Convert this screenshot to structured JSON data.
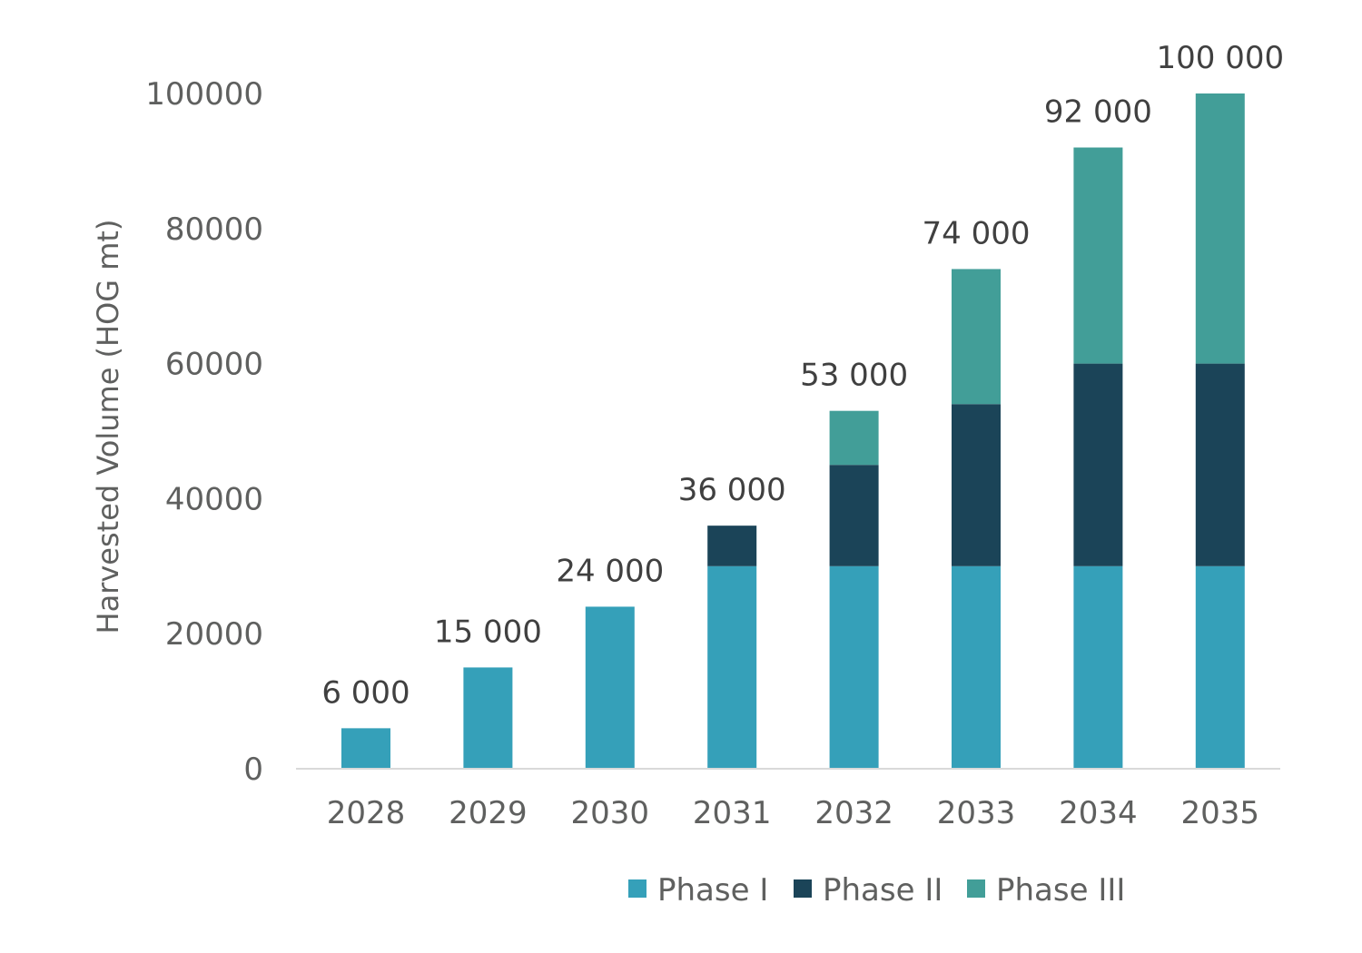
{
  "chart_data": {
    "type": "bar",
    "stacked": true,
    "categories": [
      "2028",
      "2029",
      "2030",
      "2031",
      "2032",
      "2033",
      "2034",
      "2035"
    ],
    "series": [
      {
        "name": "Phase I",
        "color": "#35a0b9",
        "values": [
          6000,
          15000,
          24000,
          30000,
          30000,
          30000,
          30000,
          30000
        ]
      },
      {
        "name": "Phase II",
        "color": "#1b4458",
        "values": [
          0,
          0,
          0,
          6000,
          15000,
          24000,
          30000,
          30000
        ]
      },
      {
        "name": "Phase III",
        "color": "#429e98",
        "values": [
          0,
          0,
          0,
          0,
          8000,
          20000,
          32000,
          40000
        ]
      }
    ],
    "totals": [
      "6 000",
      "15 000",
      "24 000",
      "36 000",
      "53 000",
      "74 000",
      "92 000",
      "100 000"
    ],
    "title": "",
    "xlabel": "",
    "ylabel": "Harvested Volume (HOG mt)",
    "ylim": [
      0,
      100000
    ],
    "yticks": [
      0,
      20000,
      40000,
      60000,
      80000,
      100000
    ],
    "ytick_labels": [
      "0",
      "20000",
      "40000",
      "60000",
      "80000",
      "100000"
    ],
    "grid": false,
    "legend_position": "bottom"
  }
}
